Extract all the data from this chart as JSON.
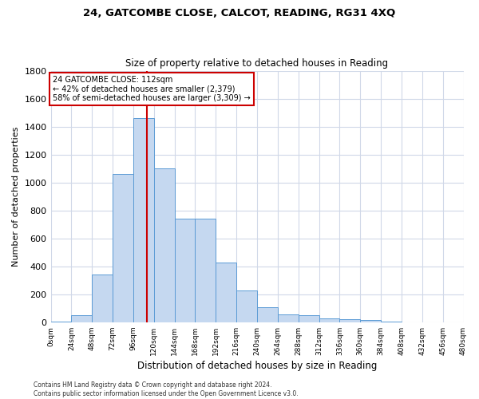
{
  "title": "24, GATCOMBE CLOSE, CALCOT, READING, RG31 4XQ",
  "subtitle": "Size of property relative to detached houses in Reading",
  "xlabel": "Distribution of detached houses by size in Reading",
  "ylabel": "Number of detached properties",
  "bar_color": "#c5d8f0",
  "bar_edge_color": "#5b9bd5",
  "background_color": "#ffffff",
  "grid_color": "#d0d8e8",
  "annotation_line_color": "#cc0000",
  "annotation_property": "24 GATCOMBE CLOSE: 112sqm",
  "annotation_line1": "← 42% of detached houses are smaller (2,379)",
  "annotation_line2": "58% of semi-detached houses are larger (3,309) →",
  "property_size_sqm": 112,
  "bin_width": 24,
  "bins": [
    0,
    24,
    48,
    72,
    96,
    120,
    144,
    168,
    192,
    216,
    240,
    264,
    288,
    312,
    336,
    360,
    384,
    408,
    432,
    456,
    480
  ],
  "counts": [
    5,
    50,
    340,
    1060,
    1460,
    1100,
    740,
    740,
    430,
    225,
    110,
    55,
    50,
    30,
    20,
    15,
    5,
    0,
    0,
    0
  ],
  "ylim": [
    0,
    1800
  ],
  "yticks": [
    0,
    200,
    400,
    600,
    800,
    1000,
    1200,
    1400,
    1600,
    1800
  ],
  "footnote1": "Contains HM Land Registry data © Crown copyright and database right 2024.",
  "footnote2": "Contains public sector information licensed under the Open Government Licence v3.0."
}
